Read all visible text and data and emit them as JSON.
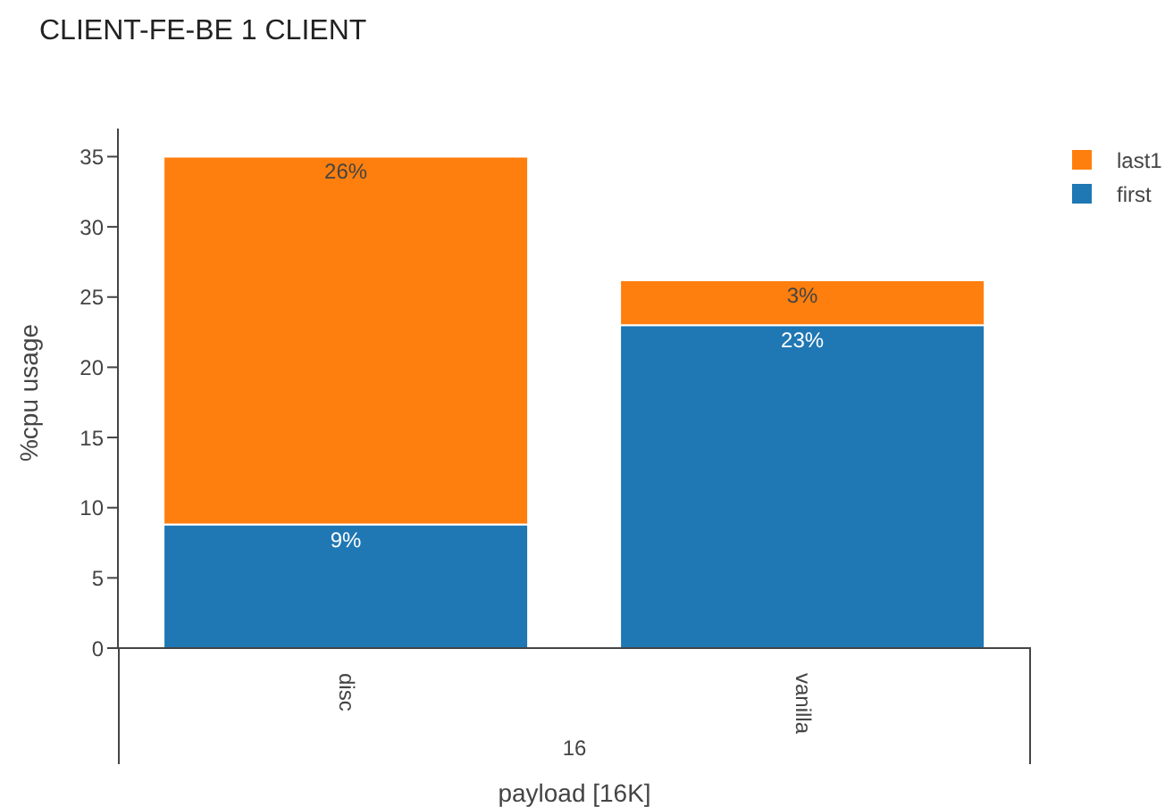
{
  "chart_data": {
    "type": "bar",
    "title": "CLIENT-FE-BE 1 CLIENT",
    "xlabel": "payload [16K]",
    "ylabel": "%cpu usage",
    "stacked": true,
    "legend": "top right",
    "grid": false,
    "categories": [
      "disc",
      "vanilla"
    ],
    "series": [
      {
        "name": "first",
        "color": "#1f77b4",
        "values": [
          8.8,
          23.0
        ],
        "value_labels": [
          "9%",
          "23%"
        ]
      },
      {
        "name": "last1",
        "color": "#ff7f0e",
        "values": [
          26.2,
          3.2
        ],
        "value_labels": [
          "26%",
          "3%"
        ]
      }
    ],
    "ylim": [
      0,
      37
    ],
    "yticks": [
      0,
      5,
      10,
      15,
      20,
      25,
      30,
      35
    ],
    "annotations": [
      "16"
    ]
  }
}
